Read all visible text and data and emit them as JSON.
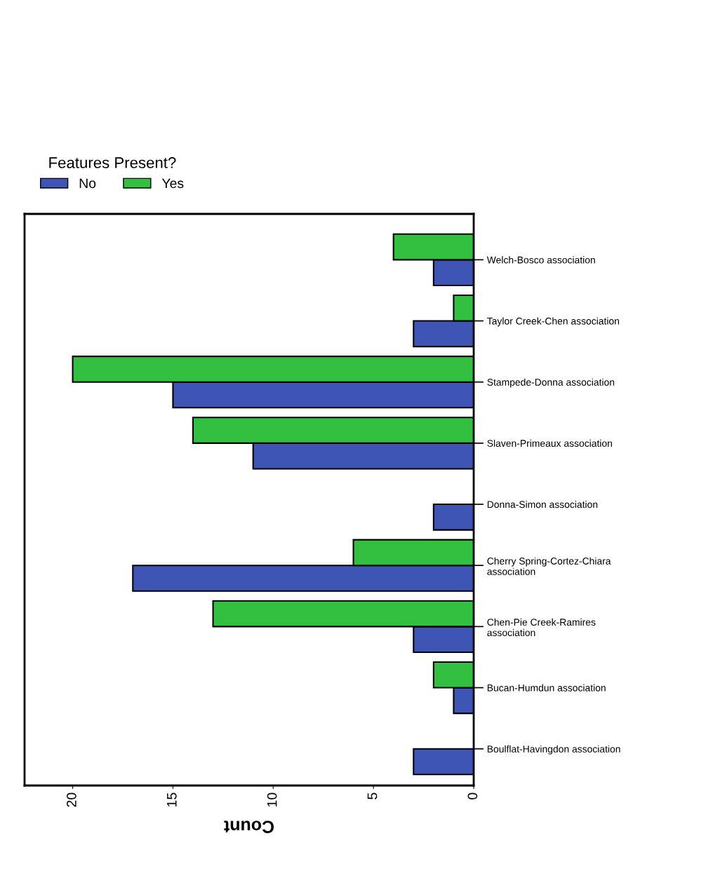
{
  "chart_data": {
    "type": "bar",
    "orientation": "horizontal",
    "xlabel": "Count",
    "legend_title": "Features Present?",
    "legend": "top left",
    "categories": [
      "Welch-Bosco association",
      "Taylor Creek-Chen association",
      "Stampede-Donna association",
      "Slaven-Primeaux association",
      "Donna-Simon association",
      "Cherry Spring-Cortez-Chiara\nassociation",
      "Chen-Pie Creek-Ramires\nassociation",
      "Bucan-Humdun association",
      "Boulflat-Havingdon association"
    ],
    "series": [
      {
        "name": "No",
        "color": "#3f55b5",
        "values": [
          2,
          3,
          15,
          11,
          2,
          17,
          3,
          1,
          3
        ]
      },
      {
        "name": "Yes",
        "color": "#33c040",
        "values": [
          4,
          1,
          20,
          14,
          null,
          6,
          13,
          2,
          null
        ]
      }
    ],
    "xlim": [
      22.4,
      0
    ],
    "xticks": [
      20,
      15,
      10,
      5,
      0
    ],
    "grid": false
  }
}
